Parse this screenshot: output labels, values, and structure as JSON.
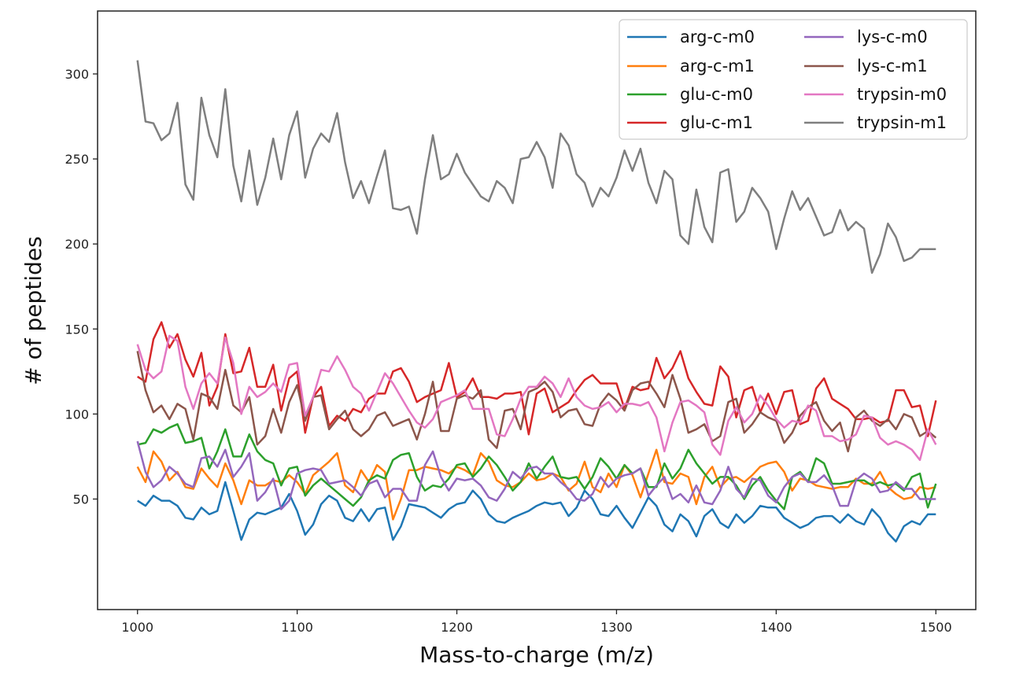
{
  "chart_data": {
    "type": "line",
    "xlabel": "Mass-to-charge (m/z)",
    "ylabel": "# of peptides",
    "xlim": [
      975,
      1525
    ],
    "ylim": [
      -15,
      337
    ],
    "xticks": [
      1000,
      1100,
      1200,
      1300,
      1400,
      1500
    ],
    "yticks": [
      50,
      100,
      150,
      200,
      250,
      300
    ],
    "grid": false,
    "legend_position": "top-right",
    "x": [
      1000,
      1005,
      1010,
      1015,
      1020,
      1025,
      1030,
      1035,
      1040,
      1045,
      1050,
      1055,
      1060,
      1065,
      1070,
      1075,
      1080,
      1085,
      1090,
      1095,
      1100,
      1105,
      1110,
      1115,
      1120,
      1125,
      1130,
      1135,
      1140,
      1145,
      1150,
      1155,
      1160,
      1165,
      1170,
      1175,
      1180,
      1185,
      1190,
      1195,
      1200,
      1205,
      1210,
      1215,
      1220,
      1225,
      1230,
      1235,
      1240,
      1245,
      1250,
      1255,
      1260,
      1265,
      1270,
      1275,
      1280,
      1285,
      1290,
      1295,
      1300,
      1305,
      1310,
      1315,
      1320,
      1325,
      1330,
      1335,
      1340,
      1345,
      1350,
      1355,
      1360,
      1365,
      1370,
      1375,
      1380,
      1385,
      1390,
      1395,
      1400,
      1405,
      1410,
      1415,
      1420,
      1425,
      1430,
      1435,
      1440,
      1445,
      1450,
      1455,
      1460,
      1465,
      1470,
      1475,
      1480,
      1485,
      1490,
      1495,
      1500
    ],
    "series": [
      {
        "name": "arg-c-m0",
        "color": "#1f77b4",
        "values": [
          49,
          46,
          52,
          49,
          49,
          46,
          39,
          38,
          45,
          41,
          43,
          60,
          43,
          26,
          38,
          42,
          41,
          43,
          45,
          53,
          43,
          29,
          35,
          47,
          52,
          49,
          39,
          37,
          44,
          37,
          44,
          45,
          26,
          34,
          47,
          46,
          45,
          42,
          39,
          44,
          47,
          48,
          55,
          50,
          41,
          37,
          36,
          39,
          41,
          43,
          46,
          48,
          47,
          48,
          40,
          45,
          55,
          50,
          41,
          40,
          46,
          39,
          33,
          42,
          51,
          46,
          35,
          31,
          41,
          37,
          28,
          40,
          44,
          36,
          33,
          41,
          36,
          40,
          46,
          45,
          45,
          39,
          36,
          33,
          35,
          39,
          40,
          40,
          36,
          41,
          37,
          35,
          44,
          39,
          30,
          25,
          34,
          37,
          35,
          41,
          41
        ]
      },
      {
        "name": "arg-c-m1",
        "color": "#ff7f0e",
        "values": [
          69,
          60,
          78,
          72,
          61,
          66,
          57,
          56,
          68,
          62,
          57,
          71,
          61,
          47,
          61,
          58,
          58,
          61,
          60,
          64,
          60,
          53,
          64,
          68,
          72,
          77,
          58,
          54,
          67,
          60,
          70,
          66,
          38,
          50,
          67,
          67,
          69,
          68,
          67,
          65,
          69,
          67,
          64,
          77,
          72,
          61,
          58,
          57,
          60,
          65,
          61,
          62,
          65,
          63,
          55,
          59,
          72,
          57,
          54,
          65,
          57,
          70,
          64,
          51,
          65,
          79,
          60,
          59,
          65,
          63,
          47,
          63,
          69,
          57,
          62,
          63,
          60,
          64,
          69,
          71,
          72,
          66,
          55,
          62,
          61,
          58,
          57,
          56,
          57,
          57,
          62,
          59,
          59,
          66,
          57,
          53,
          50,
          51,
          57,
          56,
          57
        ]
      },
      {
        "name": "glu-c-m0",
        "color": "#2ca02c",
        "values": [
          82,
          83,
          91,
          89,
          92,
          94,
          83,
          84,
          86,
          68,
          78,
          91,
          75,
          75,
          88,
          78,
          73,
          71,
          58,
          68,
          69,
          52,
          58,
          62,
          58,
          54,
          50,
          46,
          51,
          61,
          64,
          62,
          73,
          76,
          77,
          63,
          55,
          58,
          57,
          62,
          70,
          71,
          63,
          68,
          75,
          70,
          63,
          55,
          60,
          71,
          62,
          69,
          75,
          63,
          62,
          63,
          56,
          63,
          74,
          69,
          62,
          70,
          65,
          68,
          57,
          57,
          71,
          62,
          68,
          79,
          71,
          65,
          59,
          63,
          63,
          58,
          50,
          58,
          63,
          55,
          49,
          44,
          63,
          66,
          60,
          74,
          71,
          59,
          59,
          60,
          61,
          61,
          58,
          60,
          58,
          59,
          55,
          63,
          65,
          45,
          59
        ]
      },
      {
        "name": "glu-c-m1",
        "color": "#d62728",
        "values": [
          122,
          119,
          144,
          154,
          139,
          147,
          132,
          122,
          136,
          105,
          116,
          147,
          124,
          125,
          139,
          116,
          116,
          129,
          102,
          121,
          125,
          89,
          110,
          116,
          93,
          99,
          96,
          103,
          101,
          109,
          112,
          112,
          125,
          127,
          119,
          107,
          110,
          112,
          114,
          130,
          110,
          113,
          121,
          110,
          110,
          109,
          112,
          112,
          113,
          88,
          112,
          115,
          101,
          104,
          107,
          114,
          120,
          123,
          118,
          118,
          118,
          103,
          116,
          114,
          115,
          133,
          121,
          127,
          137,
          121,
          113,
          106,
          105,
          128,
          122,
          98,
          114,
          116,
          101,
          112,
          100,
          113,
          114,
          94,
          96,
          115,
          121,
          109,
          106,
          103,
          97,
          97,
          98,
          95,
          96,
          114,
          114,
          104,
          105,
          87,
          108
        ]
      },
      {
        "name": "lys-c-m0",
        "color": "#9467bd",
        "values": [
          84,
          66,
          57,
          61,
          69,
          65,
          59,
          57,
          74,
          75,
          69,
          79,
          63,
          69,
          77,
          49,
          54,
          62,
          44,
          49,
          65,
          67,
          68,
          67,
          59,
          60,
          61,
          57,
          52,
          59,
          61,
          51,
          56,
          56,
          49,
          49,
          70,
          78,
          63,
          55,
          62,
          61,
          62,
          58,
          51,
          49,
          56,
          66,
          62,
          68,
          69,
          65,
          65,
          60,
          56,
          50,
          49,
          53,
          63,
          57,
          62,
          64,
          65,
          68,
          52,
          58,
          63,
          50,
          53,
          48,
          58,
          48,
          47,
          55,
          69,
          56,
          51,
          62,
          61,
          52,
          48,
          57,
          63,
          65,
          60,
          60,
          64,
          58,
          46,
          46,
          61,
          65,
          62,
          54,
          55,
          60,
          56,
          56,
          50,
          50,
          50
        ]
      },
      {
        "name": "lys-c-m1",
        "color": "#8c564b",
        "values": [
          137,
          114,
          101,
          105,
          97,
          106,
          103,
          85,
          112,
          110,
          103,
          126,
          105,
          101,
          110,
          82,
          87,
          103,
          89,
          107,
          117,
          96,
          110,
          111,
          91,
          97,
          102,
          91,
          87,
          91,
          99,
          101,
          93,
          95,
          97,
          85,
          100,
          119,
          90,
          90,
          109,
          111,
          109,
          114,
          85,
          80,
          102,
          103,
          91,
          113,
          115,
          119,
          113,
          98,
          102,
          103,
          94,
          93,
          106,
          112,
          108,
          102,
          114,
          118,
          119,
          112,
          104,
          123,
          109,
          89,
          91,
          94,
          84,
          87,
          107,
          109,
          89,
          94,
          101,
          98,
          96,
          83,
          89,
          99,
          104,
          107,
          96,
          90,
          95,
          78,
          98,
          102,
          96,
          93,
          97,
          91,
          100,
          98,
          87,
          90,
          86
        ]
      },
      {
        "name": "trypsin-m0",
        "color": "#e377c2",
        "values": [
          141,
          126,
          121,
          125,
          146,
          143,
          116,
          103,
          118,
          124,
          118,
          145,
          130,
          100,
          116,
          110,
          113,
          118,
          113,
          129,
          130,
          99,
          110,
          126,
          125,
          134,
          126,
          116,
          112,
          102,
          113,
          124,
          118,
          110,
          102,
          95,
          92,
          97,
          107,
          109,
          111,
          114,
          103,
          103,
          103,
          88,
          87,
          97,
          109,
          116,
          116,
          122,
          118,
          110,
          121,
          110,
          105,
          103,
          104,
          107,
          101,
          106,
          106,
          105,
          107,
          98,
          78,
          95,
          107,
          108,
          105,
          101,
          82,
          76,
          96,
          104,
          95,
          100,
          111,
          105,
          97,
          92,
          96,
          95,
          105,
          102,
          87,
          87,
          84,
          85,
          88,
          99,
          98,
          86,
          82,
          84,
          82,
          79,
          73,
          91,
          82
        ]
      },
      {
        "name": "trypsin-m1",
        "color": "#7f7f7f",
        "values": [
          308,
          272,
          271,
          261,
          265,
          283,
          235,
          226,
          286,
          264,
          251,
          291,
          246,
          225,
          255,
          223,
          239,
          262,
          238,
          264,
          278,
          239,
          256,
          265,
          260,
          277,
          248,
          227,
          237,
          224,
          240,
          255,
          221,
          220,
          222,
          206,
          238,
          264,
          238,
          241,
          253,
          242,
          235,
          228,
          225,
          237,
          233,
          224,
          250,
          251,
          260,
          251,
          233,
          265,
          258,
          241,
          236,
          222,
          233,
          228,
          239,
          255,
          243,
          256,
          236,
          224,
          243,
          238,
          205,
          200,
          232,
          210,
          201,
          242,
          244,
          213,
          219,
          233,
          227,
          219,
          197,
          215,
          231,
          220,
          227,
          216,
          205,
          207,
          220,
          208,
          213,
          209,
          183,
          194,
          212,
          204,
          190,
          192,
          197,
          197,
          197
        ]
      }
    ]
  }
}
